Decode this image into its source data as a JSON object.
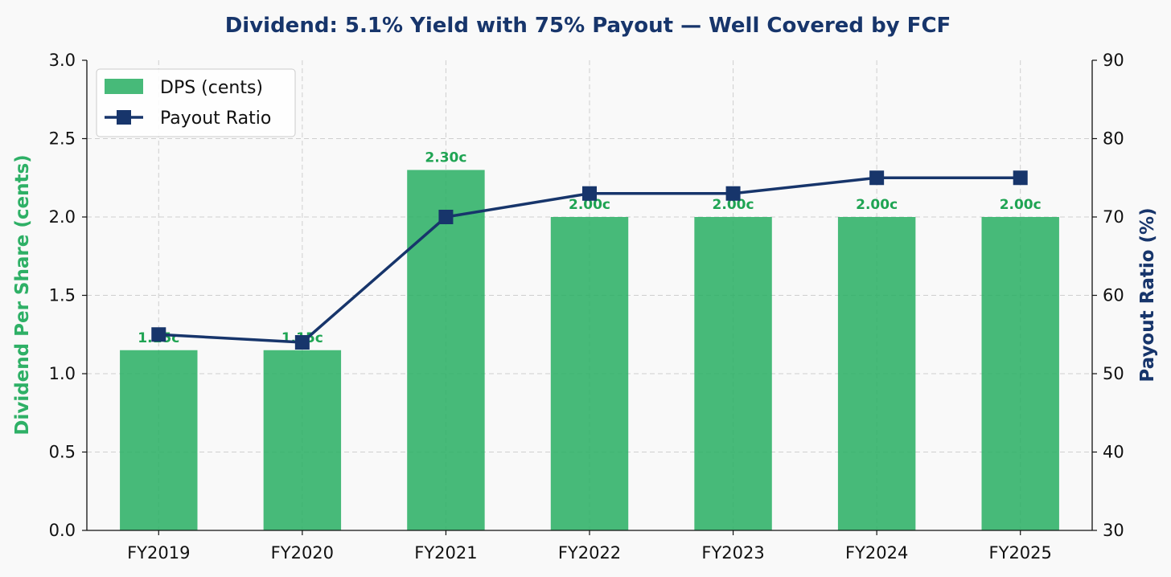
{
  "chart_data": {
    "type": "bar",
    "title": "Dividend: 5.1% Yield with 75% Payout — Well Covered by FCF",
    "categories": [
      "FY2019",
      "FY2020",
      "FY2021",
      "FY2022",
      "FY2023",
      "FY2024",
      "FY2025"
    ],
    "series": [
      {
        "name": "DPS (cents)",
        "type": "bar",
        "axis": "left",
        "values": [
          1.15,
          1.15,
          2.3,
          2.0,
          2.0,
          2.0,
          2.0
        ],
        "labels": [
          "1.15c",
          "1.15c",
          "2.30c",
          "2.00c",
          "2.00c",
          "2.00c",
          "2.00c"
        ],
        "color": "#2eb066"
      },
      {
        "name": "Payout Ratio",
        "type": "line",
        "axis": "right",
        "marker": "square",
        "values": [
          55,
          54,
          70,
          73,
          73,
          75,
          75
        ],
        "color": "#17356b"
      }
    ],
    "ylabel_left": "Dividend Per Share (cents)",
    "ylabel_right": "Payout Ratio (%)",
    "ylim_left": [
      0,
      3.0
    ],
    "yticks_left": [
      "0.0",
      "0.5",
      "1.0",
      "1.5",
      "2.0",
      "2.5",
      "3.0"
    ],
    "ylim_right": [
      30,
      90
    ],
    "yticks_right": [
      "30",
      "40",
      "50",
      "60",
      "70",
      "80",
      "90"
    ],
    "grid": true,
    "legend_position": "top-left",
    "colors": {
      "title": "#17356b",
      "left_axis_label": "#2eb066",
      "right_axis_label": "#17356b",
      "data_label": "#1fa453"
    }
  }
}
